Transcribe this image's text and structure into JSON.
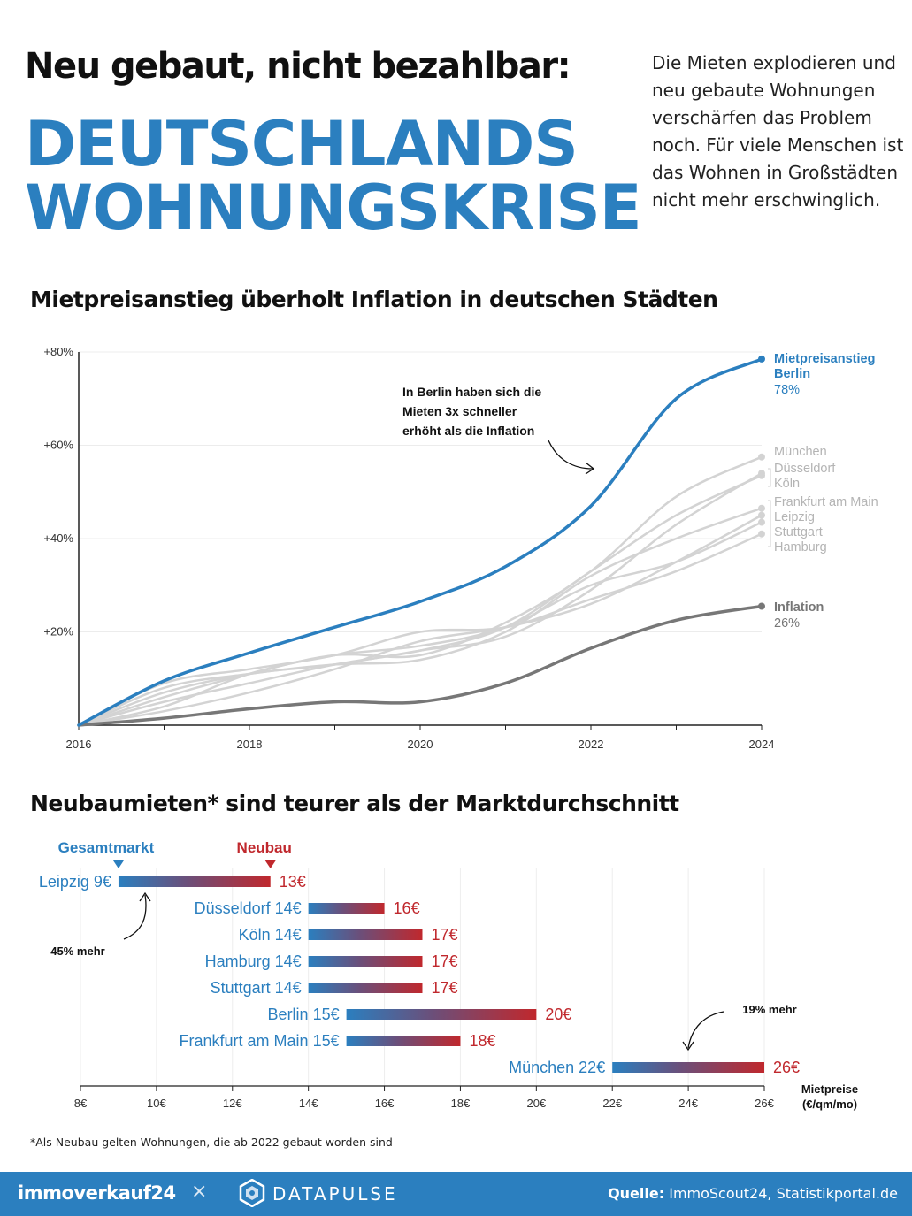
{
  "header": {
    "title": "Neu gebaut, nicht bezahlbar:",
    "headline_line1": "DEUTSCHLANDS",
    "headline_line2": "WOHNUNGSKRISE",
    "intro": "Die Mieten explodieren und neu gebaute Wohnungen verschärfen das Problem noch. Für viele Menschen ist das Wohnen in Großstädten nicht mehr erschwinglich."
  },
  "section1_title": "Mietpreisanstieg überholt Inflation in deutschen Städten",
  "section2_title": "Neubaumieten* sind teurer als der Marktdurchschnitt",
  "colors": {
    "accent": "#2b7fbf",
    "neubau": "#c0282d",
    "inflation": "#777777",
    "cities": "#d3d3d3"
  },
  "chart_data": [
    {
      "type": "line",
      "x": [
        2016,
        2017,
        2018,
        2019,
        2020,
        2021,
        2022,
        2023,
        2024
      ],
      "xticks": [
        "2016",
        "2018",
        "2020",
        "2022",
        "2024"
      ],
      "yticks": [
        "+20%",
        "+40%",
        "+60%",
        "+80%"
      ],
      "ylim": [
        0,
        80
      ],
      "grid": true,
      "series": [
        {
          "name": "München",
          "values": [
            0,
            6,
            11,
            15,
            15,
            22,
            33,
            49,
            57.5
          ]
        },
        {
          "name": "Düsseldorf",
          "values": [
            0,
            7,
            11,
            13,
            16,
            19,
            29,
            43,
            54
          ]
        },
        {
          "name": "Köln",
          "values": [
            0,
            5,
            9,
            13,
            16,
            21,
            33,
            45,
            53.5
          ]
        },
        {
          "name": "Frankfurt am Main",
          "values": [
            0,
            8,
            11,
            13,
            14,
            20,
            32,
            40,
            46.5
          ]
        },
        {
          "name": "Leipzig",
          "values": [
            0,
            3,
            7,
            12,
            18,
            21,
            26,
            35,
            45
          ]
        },
        {
          "name": "Stuttgart",
          "values": [
            0,
            4,
            11,
            15,
            17,
            21,
            30,
            35,
            43.5
          ]
        },
        {
          "name": "Hamburg",
          "values": [
            0,
            9,
            12,
            15,
            20,
            21,
            27,
            33,
            41
          ]
        },
        {
          "name": "Inflation",
          "label": "26%",
          "values": [
            0,
            1.5,
            3.5,
            5,
            5,
            9,
            16.5,
            22.5,
            25.5
          ]
        },
        {
          "name": "Mietpreisanstieg Berlin",
          "label": "78%",
          "values": [
            0,
            9.5,
            15.5,
            21,
            26.5,
            34,
            47,
            70,
            78.5
          ]
        }
      ],
      "annotation": "In Berlin haben sich die Mieten 3x schneller erhöht als die Inflation",
      "labels": {
        "berlin_title_1": "Mietpreisanstieg",
        "berlin_title_2": "Berlin",
        "berlin_value": "78%",
        "inflation_title": "Inflation",
        "inflation_value": "26%",
        "ann_1": "In Berlin haben sich die",
        "ann_2": "Mieten 3x schneller",
        "ann_3": "erhöht als die Inflation"
      }
    },
    {
      "type": "bar",
      "subtype": "dumbbell",
      "legend": {
        "market": "Gesamtmarkt",
        "new": "Neubau"
      },
      "xlim": [
        8,
        26
      ],
      "xticks": [
        "8€",
        "10€",
        "12€",
        "14€",
        "16€",
        "18€",
        "20€",
        "22€",
        "24€",
        "26€"
      ],
      "xlabel_1": "Mietpreise",
      "xlabel_2": "(€/qm/mo)",
      "rows": [
        {
          "city": "Leipzig",
          "market": 9,
          "market_label": "Leipzig 9€",
          "new": 13,
          "new_label": "13€"
        },
        {
          "city": "Düsseldorf",
          "market": 14,
          "market_label": "Düsseldorf 14€",
          "new": 16,
          "new_label": "16€"
        },
        {
          "city": "Köln",
          "market": 14,
          "market_label": "Köln 14€",
          "new": 17,
          "new_label": "17€"
        },
        {
          "city": "Hamburg",
          "market": 14,
          "market_label": "Hamburg 14€",
          "new": 17,
          "new_label": "17€"
        },
        {
          "city": "Stuttgart",
          "market": 14,
          "market_label": "Stuttgart 14€",
          "new": 17,
          "new_label": "17€"
        },
        {
          "city": "Berlin",
          "market": 15,
          "market_label": "Berlin 15€",
          "new": 20,
          "new_label": "20€"
        },
        {
          "city": "Frankfurt am Main",
          "market": 15,
          "market_label": "Frankfurt am Main 15€",
          "new": 18,
          "new_label": "18€"
        },
        {
          "city": "München",
          "market": 22,
          "market_label": "München 22€",
          "new": 26,
          "new_label": "26€"
        }
      ],
      "annotations": [
        "45% mehr",
        "19% mehr"
      ]
    }
  ],
  "footnote": "*Als Neubau gelten Wohnungen, die ab 2022 gebaut worden sind",
  "footer": {
    "brand": "immoverkauf24",
    "separator": "×",
    "partner": "DATAPULSE",
    "source_label": "Quelle:",
    "source_text": "ImmoScout24, Statistikportal.de"
  }
}
